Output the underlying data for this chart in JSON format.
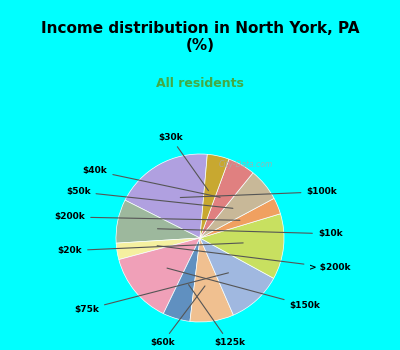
{
  "title": "Income distribution in North York, PA\n(%)",
  "subtitle": "All residents",
  "title_color": "#000000",
  "subtitle_color": "#44aa44",
  "background_top": "#00ffff",
  "background_chart": "#e8f5e8",
  "labels": [
    "$100k",
    "$10k",
    "> $200k",
    "$150k",
    "$125k",
    "$60k",
    "$75k",
    "$20k",
    "$200k",
    "$50k",
    "$40k",
    "$30k"
  ],
  "values": [
    18,
    8,
    3,
    13,
    5,
    8,
    10,
    12,
    3,
    6,
    5,
    4
  ],
  "colors": [
    "#b0a0e0",
    "#9db89d",
    "#f5f0a0",
    "#f0a0b8",
    "#6090c0",
    "#f0c090",
    "#a0b8e0",
    "#c8e060",
    "#f0a060",
    "#c8b898",
    "#e08080",
    "#c8a830"
  ]
}
